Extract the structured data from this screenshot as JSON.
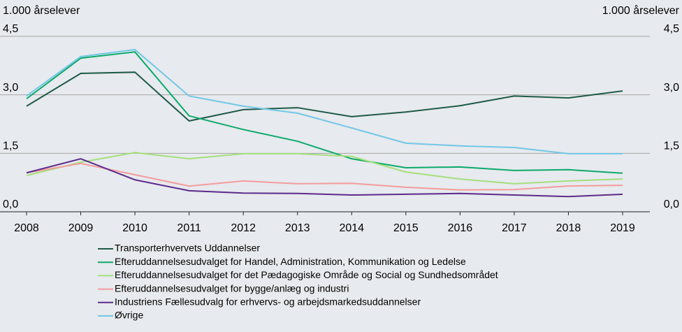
{
  "chart_data": {
    "type": "line",
    "ylabel": "1.000 årselever",
    "y2label": "1.000 årselever",
    "x": [
      "2008",
      "2009",
      "2010",
      "2011",
      "2012",
      "2013",
      "2014",
      "2015",
      "2016",
      "2017",
      "2018",
      "2019"
    ],
    "ylim": [
      0,
      4.5
    ],
    "yticks": [
      {
        "value": 0,
        "label": "0,0"
      },
      {
        "value": 1.5,
        "label": "1,5"
      },
      {
        "value": 3,
        "label": "3,0"
      },
      {
        "value": 4.5,
        "label": "4,5"
      }
    ],
    "y2lim": [
      0,
      4.5
    ],
    "y2ticks": [
      {
        "value": 0,
        "label": "0,0"
      },
      {
        "value": 1.5,
        "label": "1,5"
      },
      {
        "value": 3,
        "label": "3,0"
      },
      {
        "value": 4.5,
        "label": "4,5"
      }
    ],
    "grid": true,
    "legend": "bottom",
    "series": [
      {
        "name": "Transporterhvervets Uddannelser",
        "color": "#1f5a48",
        "values": [
          2.71,
          3.55,
          3.58,
          2.33,
          2.62,
          2.67,
          2.44,
          2.56,
          2.72,
          2.97,
          2.92,
          3.1
        ]
      },
      {
        "name": "Efteruddannelsesudvalget for Handel, Administration, Kommunikation og Ledelse",
        "color": "#0caa6a",
        "values": [
          2.9,
          3.94,
          4.1,
          2.46,
          2.11,
          1.81,
          1.36,
          1.13,
          1.15,
          1.06,
          1.08,
          0.99
        ]
      },
      {
        "name": "Efteruddannelsesudvalget for det Pædagogiske Område og Social og Sundhedsområdet",
        "color": "#a5df7c",
        "values": [
          0.93,
          1.27,
          1.52,
          1.36,
          1.49,
          1.49,
          1.42,
          1.02,
          0.84,
          0.72,
          0.79,
          0.84
        ]
      },
      {
        "name": "Efteruddannelsesudvalget for bygge/anlæg og industri",
        "color": "#f39c9c",
        "values": [
          1.0,
          1.24,
          0.95,
          0.66,
          0.79,
          0.72,
          0.73,
          0.63,
          0.56,
          0.57,
          0.66,
          0.68
        ]
      },
      {
        "name": "Industriens Fællesudvalg for erhvervs- og arbejdsmarkedsuddannelser",
        "color": "#5b2b8c",
        "values": [
          1.0,
          1.36,
          0.82,
          0.54,
          0.48,
          0.47,
          0.43,
          0.45,
          0.47,
          0.43,
          0.39,
          0.45
        ]
      },
      {
        "name": "Øvrige",
        "color": "#72c7e6",
        "values": [
          2.97,
          3.98,
          4.16,
          2.97,
          2.71,
          2.53,
          2.15,
          1.76,
          1.69,
          1.65,
          1.49,
          1.49
        ]
      }
    ]
  }
}
